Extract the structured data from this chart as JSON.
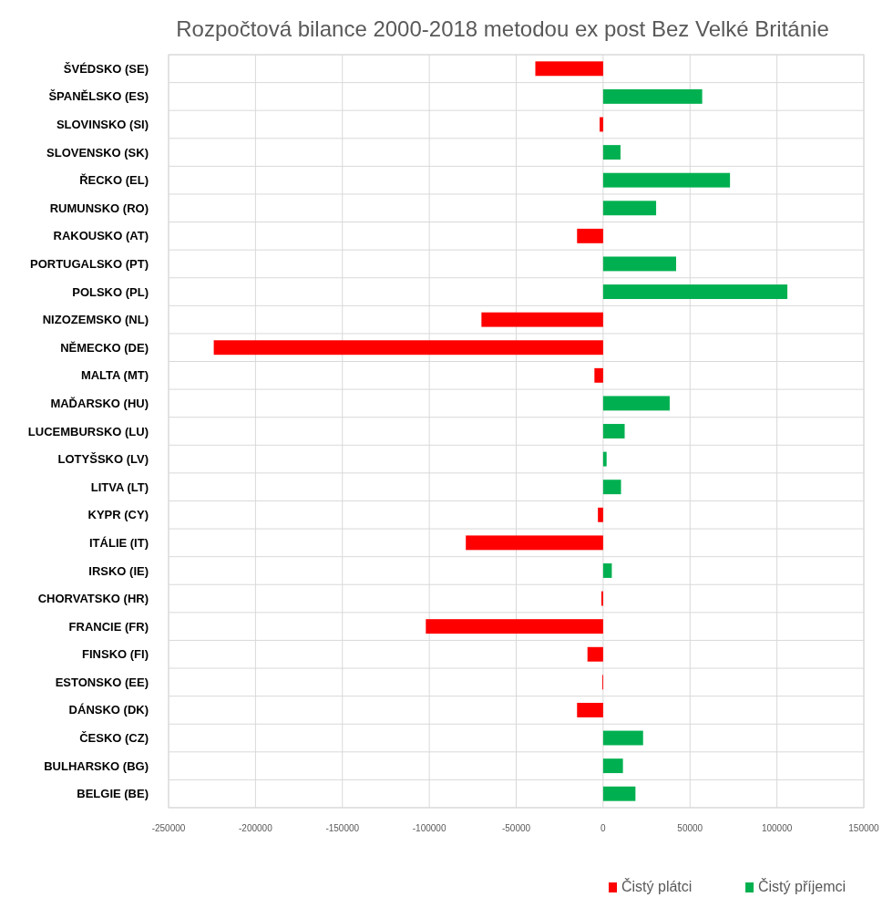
{
  "chart_data": {
    "type": "bar",
    "orientation": "horizontal",
    "title": "Rozpočtová bilance 2000-2018 metodou ex post Bez Velké Británie",
    "categories": [
      "ŠVÉDSKO (SE)",
      "ŠPANĚLSKO (ES)",
      "SLOVINSKO (SI)",
      "SLOVENSKO (SK)",
      "ŘECKO (EL)",
      "RUMUNSKO (RO)",
      "RAKOUSKO (AT)",
      "PORTUGALSKO (PT)",
      "POLSKO (PL)",
      "NIZOZEMSKO (NL)",
      "NĚMECKO (DE)",
      "MALTA (MT)",
      "MAĎARSKO (HU)",
      "LUCEMBURSKO (LU)",
      "LOTYŠSKO (LV)",
      "LITVA (LT)",
      "KYPR (CY)",
      "ITÁLIE (IT)",
      "IRSKO (IE)",
      "CHORVATSKO (HR)",
      "FRANCIE (FR)",
      "FINSKO (FI)",
      "ESTONSKO (EE)",
      "DÁNSKO (DK)",
      "ČESKO (CZ)",
      "BULHARSKO (BG)",
      "BELGIE (BE)"
    ],
    "series": [
      {
        "name": "Čistý plátci",
        "color": "#ff0000",
        "values": [
          -39000,
          null,
          -2000,
          null,
          null,
          null,
          -15000,
          null,
          null,
          -70000,
          -224000,
          -5000,
          null,
          null,
          null,
          null,
          -3000,
          -79000,
          null,
          -1000,
          -102000,
          -9000,
          -500,
          -15000,
          null,
          null,
          null
        ]
      },
      {
        "name": "Čistý příjemci",
        "color": "#00b050",
        "values": [
          null,
          57000,
          null,
          10000,
          73000,
          30500,
          null,
          42000,
          106000,
          null,
          null,
          null,
          38300,
          12400,
          2000,
          10300,
          null,
          null,
          5000,
          null,
          null,
          null,
          null,
          null,
          23000,
          11400,
          18600
        ]
      }
    ],
    "xlim": [
      -250000,
      150000
    ],
    "xticks": [
      -250000,
      -200000,
      -150000,
      -100000,
      -50000,
      0,
      50000,
      100000,
      150000
    ],
    "grid": true,
    "legend": "bottom"
  }
}
